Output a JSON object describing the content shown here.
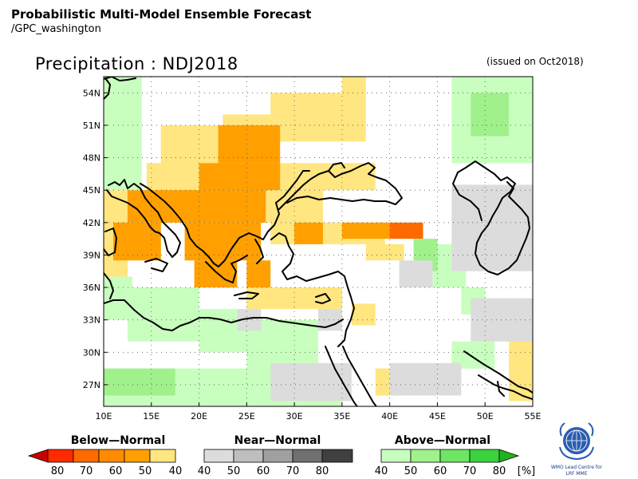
{
  "header": {
    "title": "Probabilistic Multi-Model Ensemble Forecast",
    "source": "/GPC_washington",
    "subtitle": "Precipitation : NDJ2018",
    "issued": "(issued on Oct2018)"
  },
  "map": {
    "lon_range": [
      10,
      55
    ],
    "lat_range": [
      25,
      55.5
    ],
    "lon_ticks": [
      {
        "value": 10,
        "label": "10E"
      },
      {
        "value": 15,
        "label": "15E"
      },
      {
        "value": 20,
        "label": "20E"
      },
      {
        "value": 25,
        "label": "25E"
      },
      {
        "value": 30,
        "label": "30E"
      },
      {
        "value": 35,
        "label": "35E"
      },
      {
        "value": 40,
        "label": "40E"
      },
      {
        "value": 45,
        "label": "45E"
      },
      {
        "value": 50,
        "label": "50E"
      },
      {
        "value": 55,
        "label": "55E"
      }
    ],
    "lat_ticks": [
      {
        "value": 27,
        "label": "27N"
      },
      {
        "value": 30,
        "label": "30N"
      },
      {
        "value": 33,
        "label": "33N"
      },
      {
        "value": 36,
        "label": "36N"
      },
      {
        "value": 39,
        "label": "39N"
      },
      {
        "value": 42,
        "label": "42N"
      },
      {
        "value": 45,
        "label": "45N"
      },
      {
        "value": 48,
        "label": "48N"
      },
      {
        "value": 51,
        "label": "51N"
      },
      {
        "value": 54,
        "label": "54N"
      }
    ],
    "grid_lines": true,
    "colors": {
      "below": {
        "40": "#ffe680",
        "50": "#ffa000",
        "60": "#ff6a00",
        "70": "#ff2a00",
        "80": "#c80000"
      },
      "near": {
        "40": "#dcdcdc",
        "50": "#bebebe",
        "60": "#a0a0a0",
        "70": "#707070",
        "80": "#404040"
      },
      "above": {
        "40": "#c8ffbe",
        "50": "#a0f08c",
        "60": "#6ee664",
        "70": "#3cd23c",
        "80": "#1eb41e"
      }
    },
    "cells": [
      {
        "lon": [
          35.0,
          37.5
        ],
        "lat": [
          52.0,
          55.5
        ],
        "cat": "below",
        "p": "40"
      },
      {
        "lon": [
          27.5,
          35.0
        ],
        "lat": [
          52.0,
          54.0
        ],
        "cat": "below",
        "p": "40"
      },
      {
        "lon": [
          22.5,
          37.5
        ],
        "lat": [
          49.5,
          52.0
        ],
        "cat": "below",
        "p": "40"
      },
      {
        "lon": [
          16.0,
          22.0
        ],
        "lat": [
          47.5,
          51.0
        ],
        "cat": "below",
        "p": "40"
      },
      {
        "lon": [
          14.5,
          38.5
        ],
        "lat": [
          45.0,
          47.5
        ],
        "cat": "below",
        "p": "40"
      },
      {
        "lon": [
          10.0,
          12.5
        ],
        "lat": [
          37.0,
          45.0
        ],
        "cat": "below",
        "p": "40"
      },
      {
        "lon": [
          15.0,
          33.0
        ],
        "lat": [
          42.0,
          45.0
        ],
        "cat": "below",
        "p": "40"
      },
      {
        "lon": [
          27.5,
          39.5
        ],
        "lat": [
          40.0,
          42.0
        ],
        "cat": "below",
        "p": "40"
      },
      {
        "lon": [
          37.5,
          41.5
        ],
        "lat": [
          38.5,
          40.0
        ],
        "cat": "below",
        "p": "40"
      },
      {
        "lon": [
          25.0,
          35.0
        ],
        "lat": [
          34.0,
          36.0
        ],
        "cat": "below",
        "p": "40"
      },
      {
        "lon": [
          36.0,
          38.5
        ],
        "lat": [
          32.5,
          34.5
        ],
        "cat": "below",
        "p": "40"
      },
      {
        "lon": [
          38.5,
          41.0
        ],
        "lat": [
          26.0,
          28.5
        ],
        "cat": "below",
        "p": "40"
      },
      {
        "lon": [
          52.5,
          55.0
        ],
        "lat": [
          25.5,
          31.0
        ],
        "cat": "below",
        "p": "40"
      },
      {
        "lon": [
          22.0,
          28.5
        ],
        "lat": [
          47.5,
          51.0
        ],
        "cat": "below",
        "p": "50"
      },
      {
        "lon": [
          20.0,
          28.5
        ],
        "lat": [
          45.0,
          47.5
        ],
        "cat": "below",
        "p": "50"
      },
      {
        "lon": [
          12.5,
          27.0
        ],
        "lat": [
          42.0,
          45.0
        ],
        "cat": "below",
        "p": "50"
      },
      {
        "lon": [
          11.0,
          16.0
        ],
        "lat": [
          38.5,
          42.0
        ],
        "cat": "below",
        "p": "50"
      },
      {
        "lon": [
          18.5,
          26.5
        ],
        "lat": [
          38.5,
          42.0
        ],
        "cat": "below",
        "p": "50"
      },
      {
        "lon": [
          19.5,
          24.0
        ],
        "lat": [
          36.0,
          38.5
        ],
        "cat": "below",
        "p": "50"
      },
      {
        "lon": [
          25.0,
          27.5
        ],
        "lat": [
          36.0,
          38.5
        ],
        "cat": "below",
        "p": "50"
      },
      {
        "lon": [
          30.0,
          33.0
        ],
        "lat": [
          40.0,
          42.0
        ],
        "cat": "below",
        "p": "50"
      },
      {
        "lon": [
          35.0,
          40.0
        ],
        "lat": [
          40.5,
          42.0
        ],
        "cat": "below",
        "p": "50"
      },
      {
        "lon": [
          40.0,
          43.5
        ],
        "lat": [
          40.5,
          42.0
        ],
        "cat": "below",
        "p": "60"
      },
      {
        "lon": [
          10.0,
          14.0
        ],
        "lat": [
          45.0,
          55.5
        ],
        "cat": "above",
        "p": "40"
      },
      {
        "lon": [
          10.0,
          13.0
        ],
        "lat": [
          33.0,
          37.0
        ],
        "cat": "above",
        "p": "40"
      },
      {
        "lon": [
          12.5,
          20.0
        ],
        "lat": [
          31.0,
          36.0
        ],
        "cat": "above",
        "p": "40"
      },
      {
        "lon": [
          20.0,
          25.0
        ],
        "lat": [
          30.0,
          34.0
        ],
        "cat": "above",
        "p": "40"
      },
      {
        "lon": [
          25.0,
          32.5
        ],
        "lat": [
          28.5,
          33.0
        ],
        "cat": "above",
        "p": "40"
      },
      {
        "lon": [
          10.0,
          35.0
        ],
        "lat": [
          25.0,
          28.5
        ],
        "cat": "above",
        "p": "40"
      },
      {
        "lon": [
          44.5,
          48.0
        ],
        "lat": [
          36.0,
          40.0
        ],
        "cat": "above",
        "p": "40"
      },
      {
        "lon": [
          47.5,
          50.0
        ],
        "lat": [
          33.5,
          36.0
        ],
        "cat": "above",
        "p": "40"
      },
      {
        "lon": [
          46.5,
          55.0
        ],
        "lat": [
          47.5,
          55.5
        ],
        "cat": "above",
        "p": "40"
      },
      {
        "lon": [
          46.5,
          51.0
        ],
        "lat": [
          28.5,
          31.0
        ],
        "cat": "above",
        "p": "40"
      },
      {
        "lon": [
          12.5,
          17.5
        ],
        "lat": [
          26.0,
          28.5
        ],
        "cat": "above",
        "p": "50"
      },
      {
        "lon": [
          10.0,
          12.5
        ],
        "lat": [
          26.0,
          28.5
        ],
        "cat": "above",
        "p": "50"
      },
      {
        "lon": [
          42.5,
          45.0
        ],
        "lat": [
          37.5,
          40.5
        ],
        "cat": "above",
        "p": "50"
      },
      {
        "lon": [
          48.5,
          52.5
        ],
        "lat": [
          50.0,
          54.0
        ],
        "cat": "above",
        "p": "50"
      },
      {
        "lon": [
          32.5,
          35.0
        ],
        "lat": [
          32.0,
          34.0
        ],
        "cat": "near",
        "p": "40"
      },
      {
        "lon": [
          24.0,
          26.5
        ],
        "lat": [
          32.0,
          34.0
        ],
        "cat": "near",
        "p": "40"
      },
      {
        "lon": [
          27.5,
          36.0
        ],
        "lat": [
          25.5,
          29.0
        ],
        "cat": "near",
        "p": "40"
      },
      {
        "lon": [
          40.0,
          47.5
        ],
        "lat": [
          26.0,
          29.0
        ],
        "cat": "near",
        "p": "40"
      },
      {
        "lon": [
          41.0,
          44.5
        ],
        "lat": [
          36.0,
          38.5
        ],
        "cat": "near",
        "p": "40"
      },
      {
        "lon": [
          46.5,
          55.0
        ],
        "lat": [
          37.5,
          45.5
        ],
        "cat": "near",
        "p": "40"
      },
      {
        "lon": [
          48.5,
          55.0
        ],
        "lat": [
          31.0,
          35.0
        ],
        "cat": "near",
        "p": "40"
      }
    ]
  },
  "legend": {
    "below": {
      "title": "Below—Normal",
      "labels": [
        "80",
        "70",
        "60",
        "50",
        "40"
      ]
    },
    "near": {
      "title": "Near—Normal",
      "labels": [
        "40",
        "50",
        "60",
        "70",
        "80"
      ]
    },
    "above": {
      "title": "Above—Normal",
      "labels": [
        "40",
        "50",
        "60",
        "70",
        "80"
      ]
    },
    "unit": "[%]"
  },
  "logo": {
    "text1": "WMO Lead Centre for",
    "text2": "LRF MME"
  }
}
